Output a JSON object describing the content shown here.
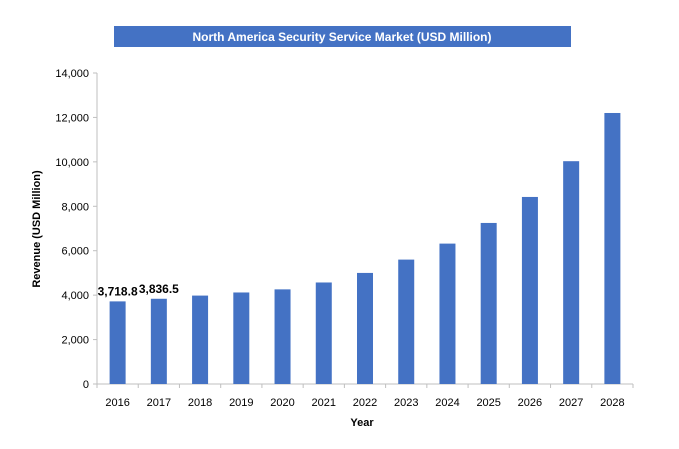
{
  "chart_data": {
    "type": "bar",
    "title": "North America Security Service Market (USD Million)",
    "xlabel": "Year",
    "ylabel": "Revenue (USD Million)",
    "categories": [
      "2016",
      "2017",
      "2018",
      "2019",
      "2020",
      "2021",
      "2022",
      "2023",
      "2024",
      "2025",
      "2026",
      "2027",
      "2028"
    ],
    "values": [
      3718.8,
      3836.5,
      3980,
      4120,
      4260,
      4570,
      5000,
      5600,
      6320,
      7250,
      8420,
      10030,
      12200
    ],
    "data_labels": [
      "3,718.8",
      "3,836.5",
      null,
      null,
      null,
      null,
      null,
      null,
      null,
      null,
      null,
      null,
      null
    ],
    "ylim": [
      0,
      14000
    ],
    "yticks": [
      0,
      2000,
      4000,
      6000,
      8000,
      10000,
      12000,
      14000
    ],
    "ytick_labels": [
      "0",
      "2,000",
      "4,000",
      "6,000",
      "8,000",
      "10,000",
      "12,000",
      "14,000"
    ],
    "grid": false,
    "legend": "none",
    "colors": {
      "bar": "#4472C4",
      "title_band": "#4472C4",
      "title_text": "#FFFFFF",
      "axis": "#BFBFBF"
    }
  }
}
